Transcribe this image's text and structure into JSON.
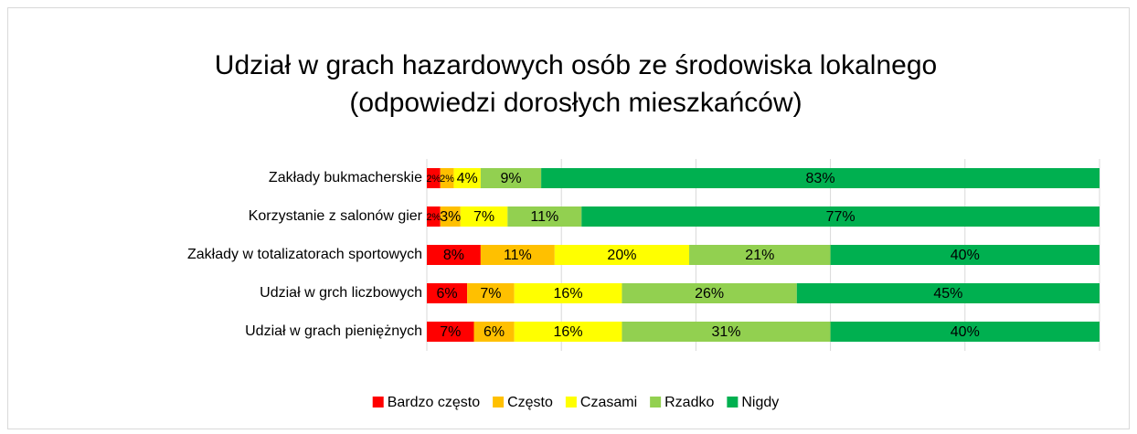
{
  "chart_data": {
    "type": "stacked_bar_horizontal",
    "title": [
      "Udział w grach hazardowych osób ze środowiska lokalnego",
      "(odpowiedzi dorosłych mieszkańców)"
    ],
    "categories": [
      "Zakłady bukmacherskie",
      "Korzystanie z salonów gier",
      "Zakłady w totalizatorach sportowych",
      "Udział w grch liczbowych",
      "Udział w grach pieniężnych"
    ],
    "series": [
      {
        "name": "Bardzo często",
        "color": "#ff0000",
        "values": [
          2,
          2,
          8,
          6,
          7
        ],
        "value_labels": [
          "2%",
          "2%",
          "8%",
          "6%",
          "7%"
        ]
      },
      {
        "name": "Często",
        "color": "#ffc000",
        "values": [
          2,
          3,
          11,
          7,
          6
        ],
        "value_labels": [
          "2%",
          "3%",
          "11%",
          "7%",
          "6%"
        ]
      },
      {
        "name": "Czasami",
        "color": "#ffff00",
        "values": [
          4,
          7,
          20,
          16,
          16
        ],
        "value_labels": [
          "4%",
          "7%",
          "20%",
          "16%",
          "16%"
        ]
      },
      {
        "name": "Rzadko",
        "color": "#92d050",
        "values": [
          9,
          11,
          21,
          26,
          31
        ],
        "value_labels": [
          "9%",
          "11%",
          "21%",
          "26%",
          "31%"
        ]
      },
      {
        "name": "Nigdy",
        "color": "#00b050",
        "values": [
          83,
          77,
          40,
          45,
          40
        ],
        "value_labels": [
          "83%",
          "77%",
          "40%",
          "45%",
          "40%"
        ]
      }
    ],
    "xlim": [
      0,
      100
    ],
    "xticks": [
      0,
      20,
      40,
      60,
      80,
      100
    ],
    "grid": true,
    "legend": "bottom"
  }
}
